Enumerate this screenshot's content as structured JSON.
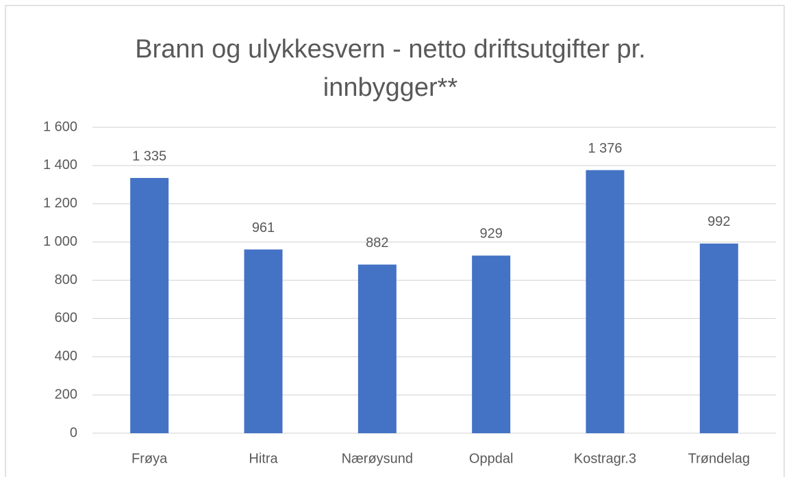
{
  "chart_data": {
    "type": "bar",
    "title": "Brann og ulykkesvern - netto driftsutgifter pr. innbygger**",
    "categories": [
      "Frøya",
      "Hitra",
      "Nærøysund",
      "Oppdal",
      "Kostragr.3",
      "Trøndelag"
    ],
    "values": [
      1335,
      961,
      882,
      929,
      1376,
      992
    ],
    "value_labels": [
      "1 335",
      "961",
      "882",
      "929",
      "1 376",
      "992"
    ],
    "color": "#4472c4",
    "ylim": [
      0,
      1600
    ],
    "yticks": [
      0,
      200,
      400,
      600,
      800,
      {
        "value": 1000,
        "label": "1 000"
      },
      {
        "value": 1200,
        "label": "1 200"
      },
      {
        "value": 1400,
        "label": "1 400"
      },
      {
        "value": 1600,
        "label": "1 600"
      }
    ],
    "grid": true
  }
}
